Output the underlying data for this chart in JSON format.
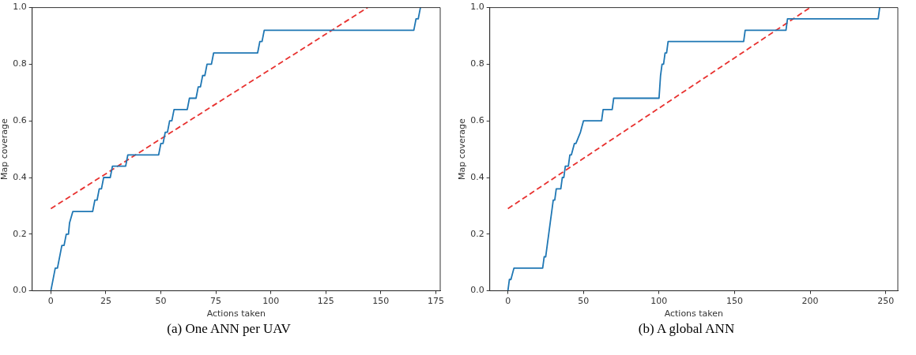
{
  "chart_data": [
    {
      "type": "line",
      "xlabel": "Actions taken",
      "ylabel": "Map coverage",
      "annotations": [
        "(a) One ANN per UAV"
      ],
      "xlim": [
        -8.5,
        177
      ],
      "ylim": [
        0,
        1
      ],
      "xticks": [
        0,
        25,
        50,
        75,
        100,
        125,
        150,
        175
      ],
      "yticks": [
        {
          "value": 0,
          "label": "0.0"
        },
        {
          "value": 0.2,
          "label": "0.2"
        },
        {
          "value": 0.4,
          "label": "0.4"
        },
        {
          "value": 0.6,
          "label": "0.6"
        },
        {
          "value": 0.8,
          "label": "0.8"
        },
        {
          "value": 1,
          "label": "1.0"
        }
      ],
      "grid": false,
      "legend": false,
      "marker": "none",
      "series": [
        {
          "color": "#1f77b4",
          "line_style": "solid",
          "x": [
            0,
            2,
            3,
            5,
            6,
            7,
            8,
            8.5,
            10,
            19,
            20,
            21,
            22,
            23,
            24,
            27,
            28,
            34,
            35,
            49,
            50,
            51,
            52,
            53,
            54,
            55,
            56,
            62,
            63,
            66,
            67,
            68,
            69,
            70,
            71,
            72,
            73,
            74,
            75,
            94,
            95,
            96,
            97,
            165,
            166,
            167,
            168
          ],
          "values": [
            0,
            0.08,
            0.08,
            0.16,
            0.16,
            0.2,
            0.2,
            0.24,
            0.28,
            0.28,
            0.32,
            0.32,
            0.36,
            0.36,
            0.4,
            0.4,
            0.44,
            0.44,
            0.48,
            0.48,
            0.52,
            0.52,
            0.56,
            0.56,
            0.6,
            0.6,
            0.64,
            0.64,
            0.68,
            0.68,
            0.72,
            0.72,
            0.76,
            0.76,
            0.8,
            0.8,
            0.8,
            0.84,
            0.84,
            0.84,
            0.88,
            0.88,
            0.92,
            0.92,
            0.96,
            0.96,
            1.0
          ]
        },
        {
          "color": "#e8312f",
          "line_style": "dashed",
          "x": [
            0,
            144
          ],
          "values": [
            0.29,
            1.0
          ]
        }
      ]
    },
    {
      "type": "line",
      "xlabel": "Actions taken",
      "ylabel": "Map coverage",
      "annotations": [
        "(b) A global ANN"
      ],
      "xlim": [
        -12,
        258
      ],
      "ylim": [
        0,
        1
      ],
      "xticks": [
        0,
        50,
        100,
        150,
        200,
        250
      ],
      "yticks": [
        {
          "value": 0,
          "label": "0.0"
        },
        {
          "value": 0.2,
          "label": "0.2"
        },
        {
          "value": 0.4,
          "label": "0.4"
        },
        {
          "value": 0.6,
          "label": "0.6"
        },
        {
          "value": 0.8,
          "label": "0.8"
        },
        {
          "value": 1,
          "label": "1.0"
        }
      ],
      "grid": false,
      "legend": false,
      "marker": "none",
      "series": [
        {
          "color": "#1f77b4",
          "line_style": "solid",
          "x": [
            0,
            1,
            2,
            4,
            23,
            24,
            25,
            26,
            27,
            28,
            29,
            30,
            31,
            32,
            35,
            36,
            37,
            38,
            40,
            41,
            42,
            44,
            45,
            48,
            50,
            62,
            63,
            64,
            69,
            70,
            100,
            101,
            102,
            103,
            104,
            105,
            106,
            156,
            157,
            184,
            185,
            245,
            246
          ],
          "values": [
            0,
            0.04,
            0.04,
            0.08,
            0.08,
            0.12,
            0.12,
            0.16,
            0.2,
            0.24,
            0.28,
            0.32,
            0.32,
            0.36,
            0.36,
            0.4,
            0.4,
            0.44,
            0.44,
            0.48,
            0.48,
            0.52,
            0.52,
            0.56,
            0.6,
            0.6,
            0.64,
            0.64,
            0.64,
            0.68,
            0.68,
            0.76,
            0.8,
            0.8,
            0.84,
            0.84,
            0.88,
            0.88,
            0.92,
            0.92,
            0.96,
            0.96,
            1.0
          ]
        },
        {
          "color": "#e8312f",
          "line_style": "dashed",
          "x": [
            0,
            200
          ],
          "values": [
            0.29,
            1.0
          ]
        }
      ]
    }
  ]
}
